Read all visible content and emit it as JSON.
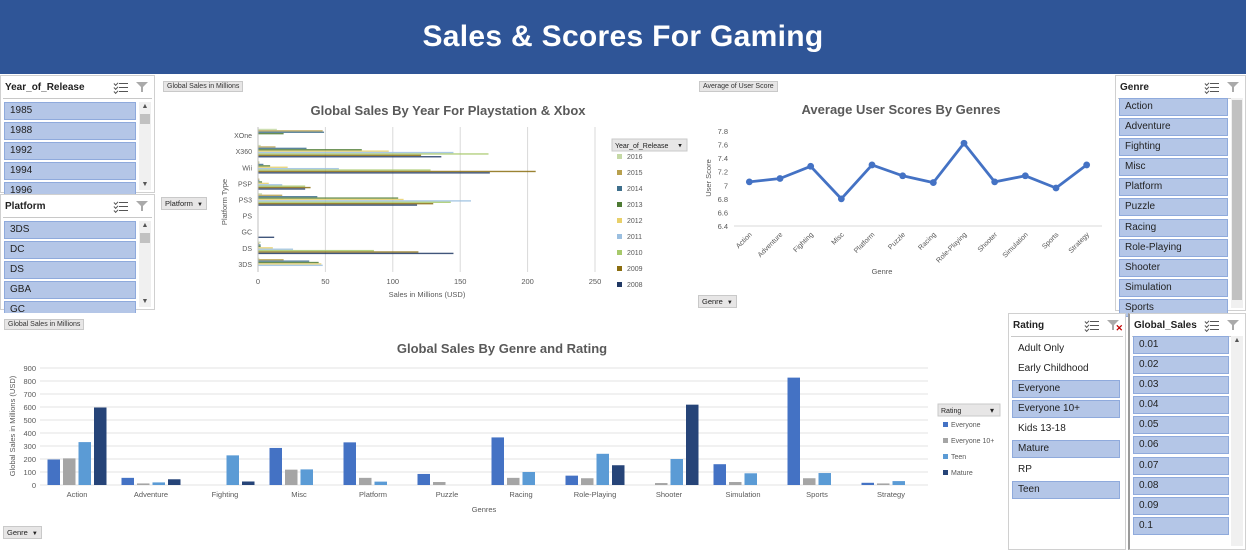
{
  "banner": {
    "title": "Sales & Scores For Gaming"
  },
  "slicers": {
    "year": {
      "title": "Year_of_Release",
      "items": [
        "1985",
        "1988",
        "1992",
        "1994",
        "1996"
      ]
    },
    "platform": {
      "title": "Platform",
      "items": [
        "3DS",
        "DC",
        "DS",
        "GBA",
        "GC"
      ]
    },
    "genre": {
      "title": "Genre",
      "items": [
        "Action",
        "Adventure",
        "Fighting",
        "Misc",
        "Platform",
        "Puzzle",
        "Racing",
        "Role-Playing",
        "Shooter",
        "Simulation",
        "Sports"
      ]
    },
    "rating": {
      "title": "Rating",
      "items": [
        {
          "label": "Adult Only",
          "selected": false
        },
        {
          "label": "Early Childhood",
          "selected": false
        },
        {
          "label": "Everyone",
          "selected": true
        },
        {
          "label": "Everyone 10+",
          "selected": true
        },
        {
          "label": "Kids 13-18",
          "selected": false
        },
        {
          "label": "Mature",
          "selected": true
        },
        {
          "label": "RP",
          "selected": false
        },
        {
          "label": "Teen",
          "selected": true
        }
      ]
    },
    "global_sales": {
      "title": "Global_Sales",
      "items": [
        "0.01",
        "0.02",
        "0.03",
        "0.04",
        "0.05",
        "0.06",
        "0.07",
        "0.08",
        "0.09",
        "0.1"
      ]
    }
  },
  "colors": {
    "banner": "#2f5597",
    "slicer_selected": "#b4c6e7",
    "everyone": "#4472c4",
    "everyone10": "#a5a5a5",
    "teen": "#5b9bd5",
    "mature": "#264478",
    "line": "#4472c4"
  },
  "chart_data": [
    {
      "id": "sales_year",
      "type": "bar",
      "orientation": "horizontal",
      "field_tag": "Global Sales in Millions",
      "filter_button": "Platform",
      "title": "Global Sales By Year For Playstation & Xbox",
      "xlabel": "Sales in Millions (USD)",
      "ylabel": "Platform Type",
      "xlim": [
        0,
        250
      ],
      "xticks": [
        0,
        50,
        100,
        150,
        200,
        250
      ],
      "categories": [
        "3DS",
        "DS",
        "GC",
        "PS",
        "PS3",
        "PSP",
        "Wii",
        "X360",
        "XOne"
      ],
      "legend_title": "Year_of_Release",
      "series": [
        {
          "name": "2016",
          "color": "#c5d9a6",
          "values": [
            1,
            2,
            0,
            0,
            3,
            0,
            1,
            2,
            14
          ]
        },
        {
          "name": "2015",
          "color": "#b8a04e",
          "values": [
            19,
            1,
            0,
            0,
            18,
            1,
            1,
            13,
            48
          ]
        },
        {
          "name": "2014",
          "color": "#3e6f8c",
          "values": [
            38,
            2,
            0,
            0,
            44,
            1,
            4,
            36,
            49
          ]
        },
        {
          "name": "2013",
          "color": "#4d7a33",
          "values": [
            45,
            2,
            0,
            0,
            104,
            3,
            9,
            77,
            19
          ]
        },
        {
          "name": "2012",
          "color": "#e8d06a",
          "values": [
            47,
            11,
            0,
            0,
            108,
            8,
            22,
            97,
            0
          ]
        },
        {
          "name": "2011",
          "color": "#9bbfe0",
          "values": [
            48,
            26,
            0,
            0,
            158,
            18,
            60,
            145,
            0
          ]
        },
        {
          "name": "2010",
          "color": "#a7c96b",
          "values": [
            0,
            86,
            0,
            0,
            143,
            35,
            128,
            171,
            0
          ]
        },
        {
          "name": "2009",
          "color": "#8a6d0f",
          "values": [
            0,
            119,
            0,
            0,
            130,
            39,
            206,
            121,
            0
          ]
        },
        {
          "name": "2008",
          "color": "#203864",
          "values": [
            0,
            145,
            12,
            0,
            118,
            35,
            172,
            136,
            0
          ]
        }
      ]
    },
    {
      "id": "user_scores",
      "type": "line",
      "field_tag": "Average of User Score",
      "filter_button": "Genre",
      "title": "Average User Scores By Genres",
      "xlabel": "Genre",
      "ylabel": "User Score",
      "ylim": [
        6.4,
        7.8
      ],
      "yticks": [
        6.4,
        6.6,
        6.8,
        7,
        7.2,
        7.4,
        7.6,
        7.8
      ],
      "categories": [
        "Action",
        "Adventure",
        "Fighting",
        "Misc",
        "Platform",
        "Puzzle",
        "Racing",
        "Role-Playing",
        "Shooter",
        "Simulation",
        "Sports",
        "Strategy"
      ],
      "values": [
        7.05,
        7.1,
        7.28,
        6.8,
        7.3,
        7.14,
        7.04,
        7.62,
        7.05,
        7.14,
        6.96,
        7.3
      ]
    },
    {
      "id": "genre_rating",
      "type": "bar",
      "field_tag": "Global Sales in Millions",
      "filter_button": "Genre",
      "title": "Global Sales By Genre and Rating",
      "xlabel": "Genres",
      "ylabel": "Global Sales in Millions (USD)",
      "ylim": [
        0,
        900
      ],
      "yticks": [
        0,
        100,
        200,
        300,
        400,
        500,
        600,
        700,
        800,
        900
      ],
      "categories": [
        "Action",
        "Adventure",
        "Fighting",
        "Misc",
        "Platform",
        "Puzzle",
        "Racing",
        "Role-Playing",
        "Shooter",
        "Simulation",
        "Sports",
        "Strategy"
      ],
      "legend_title": "Rating",
      "series": [
        {
          "name": "Everyone",
          "color": "#4472c4",
          "values": [
            196,
            55,
            0,
            285,
            328,
            85,
            366,
            72,
            0,
            160,
            826,
            17
          ]
        },
        {
          "name": "Everyone 10+",
          "color": "#a5a5a5",
          "values": [
            205,
            12,
            0,
            118,
            55,
            23,
            55,
            52,
            15,
            23,
            52,
            12
          ]
        },
        {
          "name": "Teen",
          "color": "#5b9bd5",
          "values": [
            330,
            20,
            228,
            120,
            26,
            0,
            100,
            240,
            200,
            90,
            92,
            30
          ]
        },
        {
          "name": "Mature",
          "color": "#264478",
          "values": [
            596,
            44,
            27,
            0,
            0,
            0,
            0,
            152,
            618,
            0,
            0,
            0
          ]
        }
      ]
    }
  ]
}
